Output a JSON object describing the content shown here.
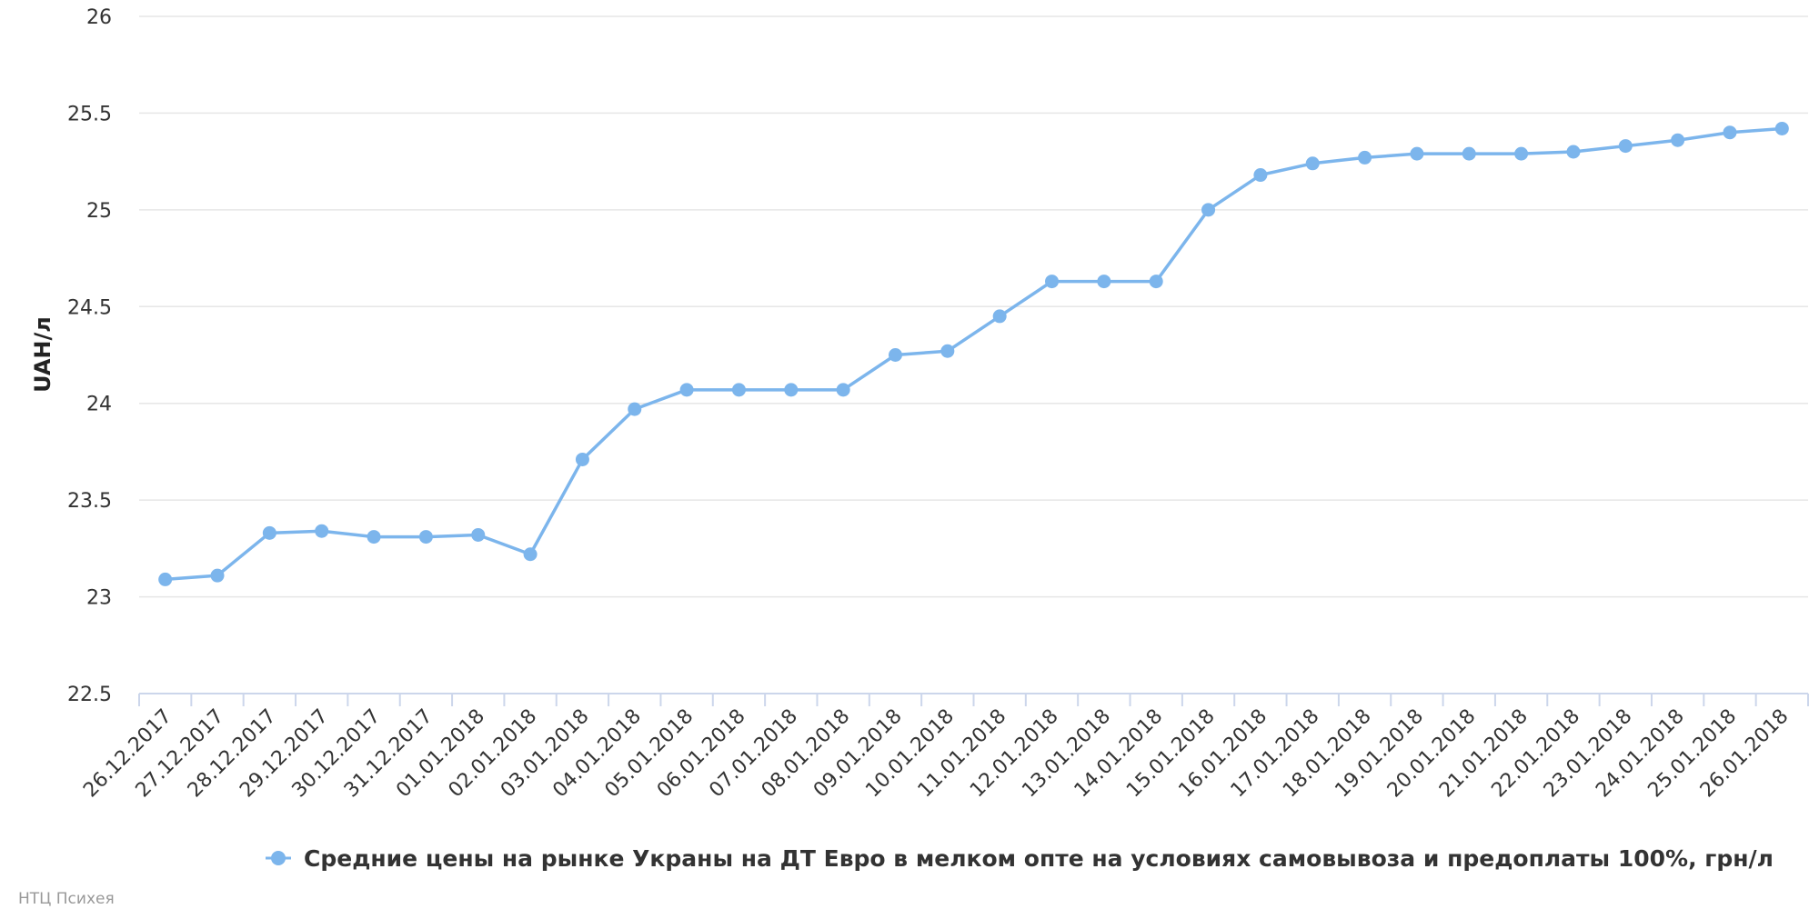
{
  "chart_data": {
    "type": "line",
    "title": "",
    "xlabel": "",
    "ylabel": "UAH/л",
    "ylim": [
      22.5,
      26
    ],
    "yticks": [
      22.5,
      23,
      23.5,
      24,
      24.5,
      25,
      25.5,
      26
    ],
    "ytick_labels": [
      "22.5",
      "23",
      "23.5",
      "24",
      "24.5",
      "25",
      "25.5",
      "26"
    ],
    "grid": true,
    "legend_position": "bottom-center",
    "categories": [
      "26.12.2017",
      "27.12.2017",
      "28.12.2017",
      "29.12.2017",
      "30.12.2017",
      "31.12.2017",
      "01.01.2018",
      "02.01.2018",
      "03.01.2018",
      "04.01.2018",
      "05.01.2018",
      "06.01.2018",
      "07.01.2018",
      "08.01.2018",
      "09.01.2018",
      "10.01.2018",
      "11.01.2018",
      "12.01.2018",
      "13.01.2018",
      "14.01.2018",
      "15.01.2018",
      "16.01.2018",
      "17.01.2018",
      "18.01.2018",
      "19.01.2018",
      "20.01.2018",
      "21.01.2018",
      "22.01.2018",
      "23.01.2018",
      "24.01.2018",
      "25.01.2018",
      "26.01.2018"
    ],
    "series": [
      {
        "name": "Средние цены на рынке Украны на ДТ Евро в мелком опте на условиях самовывоза и предоплаты 100%, грн/л",
        "color": "#7cb5ec",
        "values": [
          23.09,
          23.11,
          23.33,
          23.34,
          23.31,
          23.31,
          23.32,
          23.22,
          23.71,
          23.97,
          24.07,
          24.07,
          24.07,
          24.07,
          24.25,
          24.27,
          24.45,
          24.63,
          24.63,
          24.63,
          25.0,
          25.18,
          25.24,
          25.27,
          25.29,
          25.29,
          25.29,
          25.3,
          25.33,
          25.36,
          25.4,
          25.42
        ]
      }
    ]
  },
  "credit": "НТЦ Психея",
  "colors": {
    "grid": "#e6e6e6",
    "axis": "#ccd6eb"
  }
}
